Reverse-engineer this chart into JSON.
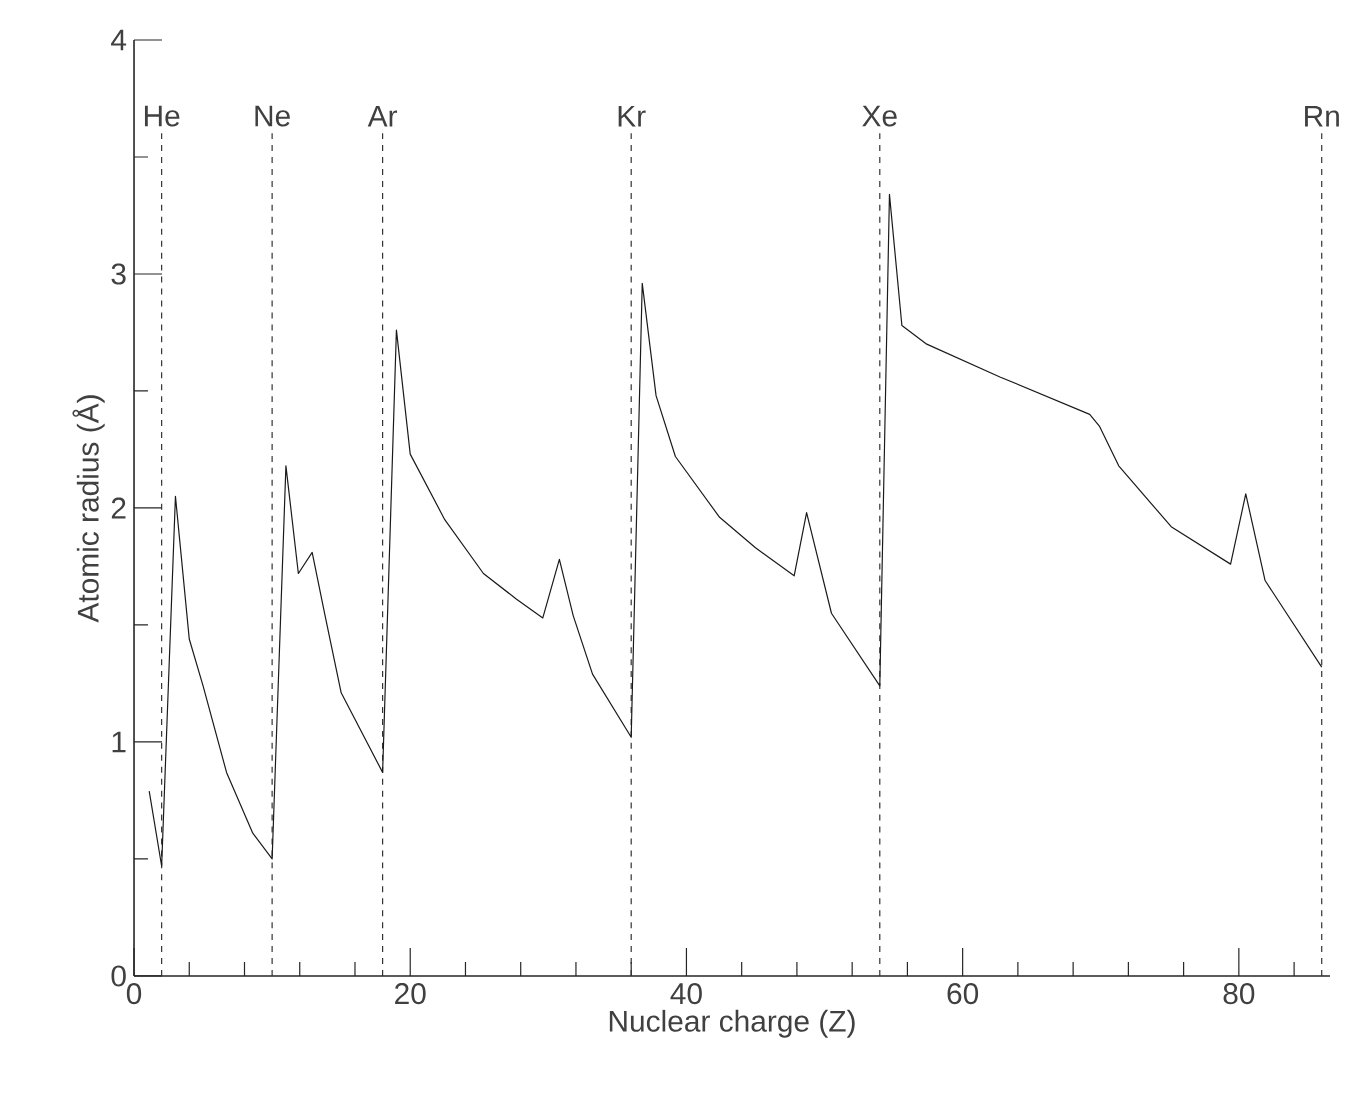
{
  "chart_data": {
    "type": "line",
    "xlabel": "Nuclear charge (Z)",
    "ylabel": "Atomic radius (Å)",
    "xlim": [
      0,
      86.6
    ],
    "ylim": [
      0,
      4
    ],
    "xticks": [
      0,
      {
        "value": 4,
        "label": null
      },
      {
        "value": 8,
        "label": null
      },
      {
        "value": 12,
        "label": null
      },
      {
        "value": 16,
        "label": null
      },
      20,
      {
        "value": 24,
        "label": null
      },
      {
        "value": 28,
        "label": null
      },
      {
        "value": 32,
        "label": null
      },
      {
        "value": 36,
        "label": null
      },
      40,
      {
        "value": 44,
        "label": null
      },
      {
        "value": 48,
        "label": null
      },
      {
        "value": 52,
        "label": null
      },
      {
        "value": 56,
        "label": null
      },
      60,
      {
        "value": 64,
        "label": null
      },
      {
        "value": 68,
        "label": null
      },
      {
        "value": 72,
        "label": null
      },
      {
        "value": 76,
        "label": null
      },
      80,
      {
        "value": 84,
        "label": null
      }
    ],
    "yticks": [
      0,
      {
        "value": 0.5,
        "label": null
      },
      1,
      {
        "value": 1.5,
        "label": null
      },
      2,
      {
        "value": 2.5,
        "label": null
      },
      3,
      {
        "value": 3.5,
        "label": null
      },
      4
    ],
    "grid": false,
    "marker": "none",
    "line_style": "solid",
    "series": [
      {
        "color": "#1a1a1a",
        "x": [
          1.1,
          2,
          3,
          4,
          5,
          6.7,
          8.6,
          10,
          11,
          11.9,
          12.9,
          13.8,
          15,
          18,
          19,
          20,
          22.5,
          25.3,
          27.7,
          29.6,
          30.8,
          31.8,
          33.2,
          36,
          36.8,
          37.8,
          39.2,
          42.4,
          45,
          47.8,
          48.7,
          50.5,
          54,
          54.7,
          55.6,
          57.4,
          62.7,
          69.2,
          69.9,
          71.3,
          75.1,
          79.4,
          80.5,
          81.9,
          86
        ],
        "values": [
          0.79,
          0.47,
          2.05,
          1.44,
          1.24,
          0.87,
          0.61,
          0.5,
          2.18,
          1.72,
          1.81,
          1.55,
          1.21,
          0.87,
          2.76,
          2.23,
          1.95,
          1.72,
          1.61,
          1.53,
          1.78,
          1.54,
          1.29,
          1.02,
          2.96,
          2.48,
          2.22,
          1.96,
          1.83,
          1.71,
          1.98,
          1.55,
          1.24,
          3.34,
          2.78,
          2.7,
          2.56,
          2.4,
          2.35,
          2.18,
          1.92,
          1.76,
          2.06,
          1.69,
          1.32
        ]
      }
    ],
    "ref_lines": [
      {
        "axis": "x",
        "value": 2,
        "label": "He",
        "line_style": "dashed",
        "color": "#333333"
      },
      {
        "axis": "x",
        "value": 10,
        "label": "Ne",
        "line_style": "dashed",
        "color": "#333333"
      },
      {
        "axis": "x",
        "value": 18,
        "label": "Ar",
        "line_style": "dashed",
        "color": "#333333"
      },
      {
        "axis": "x",
        "value": 36,
        "label": "Kr",
        "line_style": "dashed",
        "color": "#333333"
      },
      {
        "axis": "x",
        "value": 54,
        "label": "Xe",
        "line_style": "dashed",
        "color": "#333333"
      },
      {
        "axis": "x",
        "value": 86,
        "label": "Rn",
        "line_style": "dashed",
        "color": "#333333"
      }
    ]
  }
}
